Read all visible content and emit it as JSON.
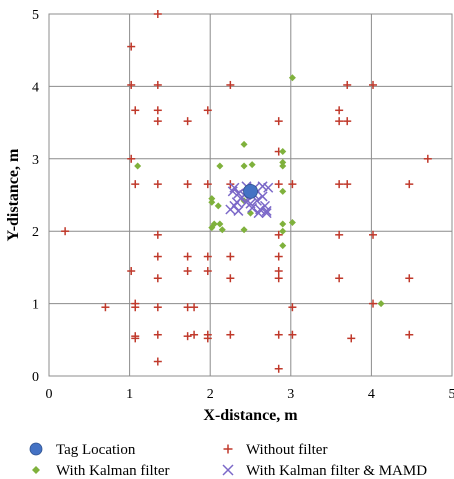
{
  "chart_data": {
    "type": "scatter",
    "title": "",
    "xlabel": "X-distance, m",
    "ylabel": "Y-distance, m",
    "xlim": [
      0,
      5
    ],
    "ylim": [
      0,
      5
    ],
    "xticks": [
      "0",
      "1",
      "2",
      "3",
      "4",
      "5"
    ],
    "yticks": [
      "0",
      "1",
      "2",
      "3",
      "4",
      "5"
    ],
    "grid": true,
    "legend_position": "bottom",
    "series": [
      {
        "name": "Tag Location",
        "marker": "circle",
        "color": "#4472C4",
        "points": [
          [
            2.5,
            2.55
          ]
        ]
      },
      {
        "name": "Without filter",
        "marker": "plus",
        "color": "#C0392B",
        "points": [
          [
            1.35,
            5.0
          ],
          [
            1.02,
            4.55
          ],
          [
            1.02,
            4.02
          ],
          [
            1.35,
            4.02
          ],
          [
            2.25,
            4.02
          ],
          [
            3.7,
            4.02
          ],
          [
            4.02,
            4.02
          ],
          [
            1.07,
            3.67
          ],
          [
            1.35,
            3.67
          ],
          [
            1.97,
            3.67
          ],
          [
            3.6,
            3.67
          ],
          [
            1.35,
            3.52
          ],
          [
            1.72,
            3.52
          ],
          [
            2.85,
            3.52
          ],
          [
            3.6,
            3.52
          ],
          [
            3.7,
            3.52
          ],
          [
            1.02,
            3.0
          ],
          [
            4.7,
            3.0
          ],
          [
            2.85,
            3.1
          ],
          [
            1.07,
            2.65
          ],
          [
            1.35,
            2.65
          ],
          [
            1.72,
            2.65
          ],
          [
            1.97,
            2.65
          ],
          [
            2.25,
            2.65
          ],
          [
            2.85,
            2.65
          ],
          [
            3.02,
            2.65
          ],
          [
            3.6,
            2.65
          ],
          [
            3.7,
            2.65
          ],
          [
            4.47,
            2.65
          ],
          [
            0.2,
            2.0
          ],
          [
            1.35,
            1.95
          ],
          [
            2.85,
            1.95
          ],
          [
            3.6,
            1.95
          ],
          [
            4.02,
            1.95
          ],
          [
            1.35,
            1.65
          ],
          [
            1.72,
            1.65
          ],
          [
            1.97,
            1.65
          ],
          [
            2.25,
            1.65
          ],
          [
            2.85,
            1.65
          ],
          [
            1.02,
            1.45
          ],
          [
            1.72,
            1.45
          ],
          [
            1.97,
            1.45
          ],
          [
            2.85,
            1.45
          ],
          [
            1.35,
            1.35
          ],
          [
            2.25,
            1.35
          ],
          [
            2.85,
            1.35
          ],
          [
            3.6,
            1.35
          ],
          [
            4.47,
            1.35
          ],
          [
            1.07,
            1.0
          ],
          [
            4.02,
            1.0
          ],
          [
            0.7,
            0.95
          ],
          [
            1.07,
            0.95
          ],
          [
            1.35,
            0.95
          ],
          [
            1.72,
            0.95
          ],
          [
            1.8,
            0.95
          ],
          [
            3.02,
            0.95
          ],
          [
            1.07,
            0.55
          ],
          [
            1.07,
            0.52
          ],
          [
            1.35,
            0.57
          ],
          [
            1.72,
            0.55
          ],
          [
            1.8,
            0.57
          ],
          [
            1.97,
            0.57
          ],
          [
            1.97,
            0.52
          ],
          [
            2.25,
            0.57
          ],
          [
            2.85,
            0.57
          ],
          [
            3.02,
            0.57
          ],
          [
            3.75,
            0.52
          ],
          [
            4.47,
            0.57
          ],
          [
            1.35,
            0.2
          ],
          [
            2.85,
            0.1
          ]
        ]
      },
      {
        "name": "With Kalman filter",
        "marker": "diamond",
        "color": "#7FB13C",
        "points": [
          [
            3.02,
            4.12
          ],
          [
            2.42,
            3.2
          ],
          [
            2.9,
            3.1
          ],
          [
            1.1,
            2.9
          ],
          [
            2.12,
            2.9
          ],
          [
            2.42,
            2.9
          ],
          [
            2.52,
            2.92
          ],
          [
            2.9,
            2.95
          ],
          [
            2.9,
            2.9
          ],
          [
            2.9,
            2.55
          ],
          [
            2.02,
            2.45
          ],
          [
            2.02,
            2.4
          ],
          [
            2.42,
            2.42
          ],
          [
            2.1,
            2.35
          ],
          [
            2.05,
            2.1
          ],
          [
            2.02,
            2.05
          ],
          [
            2.12,
            2.1
          ],
          [
            2.15,
            2.02
          ],
          [
            2.42,
            2.02
          ],
          [
            2.9,
            2.1
          ],
          [
            2.9,
            2.0
          ],
          [
            3.02,
            2.12
          ],
          [
            2.9,
            1.8
          ],
          [
            4.12,
            1.0
          ],
          [
            2.5,
            2.25
          ]
        ]
      },
      {
        "name": "With Kalman filter & MAMD",
        "marker": "x",
        "color": "#7B68C8",
        "points": [
          [
            2.3,
            2.6
          ],
          [
            2.35,
            2.52
          ],
          [
            2.45,
            2.62
          ],
          [
            2.55,
            2.6
          ],
          [
            2.65,
            2.62
          ],
          [
            2.72,
            2.6
          ],
          [
            2.3,
            2.35
          ],
          [
            2.25,
            2.3
          ],
          [
            2.35,
            2.28
          ],
          [
            2.45,
            2.4
          ],
          [
            2.5,
            2.38
          ],
          [
            2.58,
            2.42
          ],
          [
            2.62,
            2.3
          ],
          [
            2.6,
            2.25
          ],
          [
            2.7,
            2.28
          ],
          [
            2.68,
            2.35
          ],
          [
            2.42,
            2.5
          ],
          [
            2.55,
            2.5
          ],
          [
            2.38,
            2.45
          ],
          [
            2.65,
            2.48
          ],
          [
            2.28,
            2.55
          ],
          [
            2.52,
            2.32
          ],
          [
            2.7,
            2.25
          ],
          [
            2.33,
            2.4
          ]
        ]
      }
    ]
  }
}
